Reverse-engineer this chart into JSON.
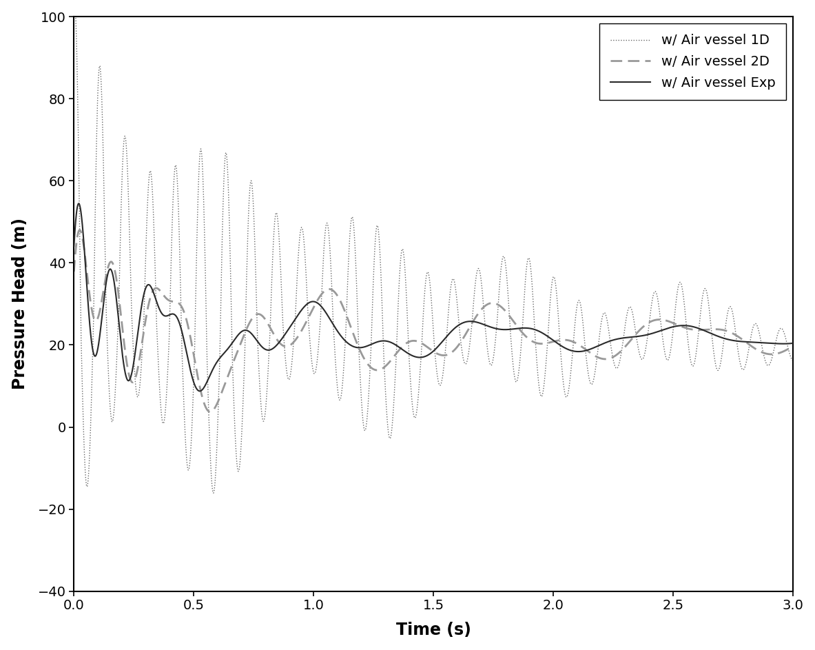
{
  "title": "",
  "xlabel": "Time (s)",
  "ylabel": "Pressure Head (m)",
  "xlim": [
    0.0,
    3.0
  ],
  "ylim": [
    -40,
    100
  ],
  "yticks": [
    -40,
    -20,
    0,
    20,
    40,
    60,
    80,
    100
  ],
  "xticks": [
    0.0,
    0.5,
    1.0,
    1.5,
    2.0,
    2.5,
    3.0
  ],
  "legend_labels": [
    "w/ Air vessel Exp",
    "w/ Air vessel 1D",
    "w/ Air vessel 2D"
  ],
  "exp_color": "#2a2a2a",
  "model1d_color": "#666666",
  "model2d_color": "#999999",
  "background_color": "#ffffff",
  "figsize": [
    11.83,
    9.43
  ],
  "dpi": 100
}
